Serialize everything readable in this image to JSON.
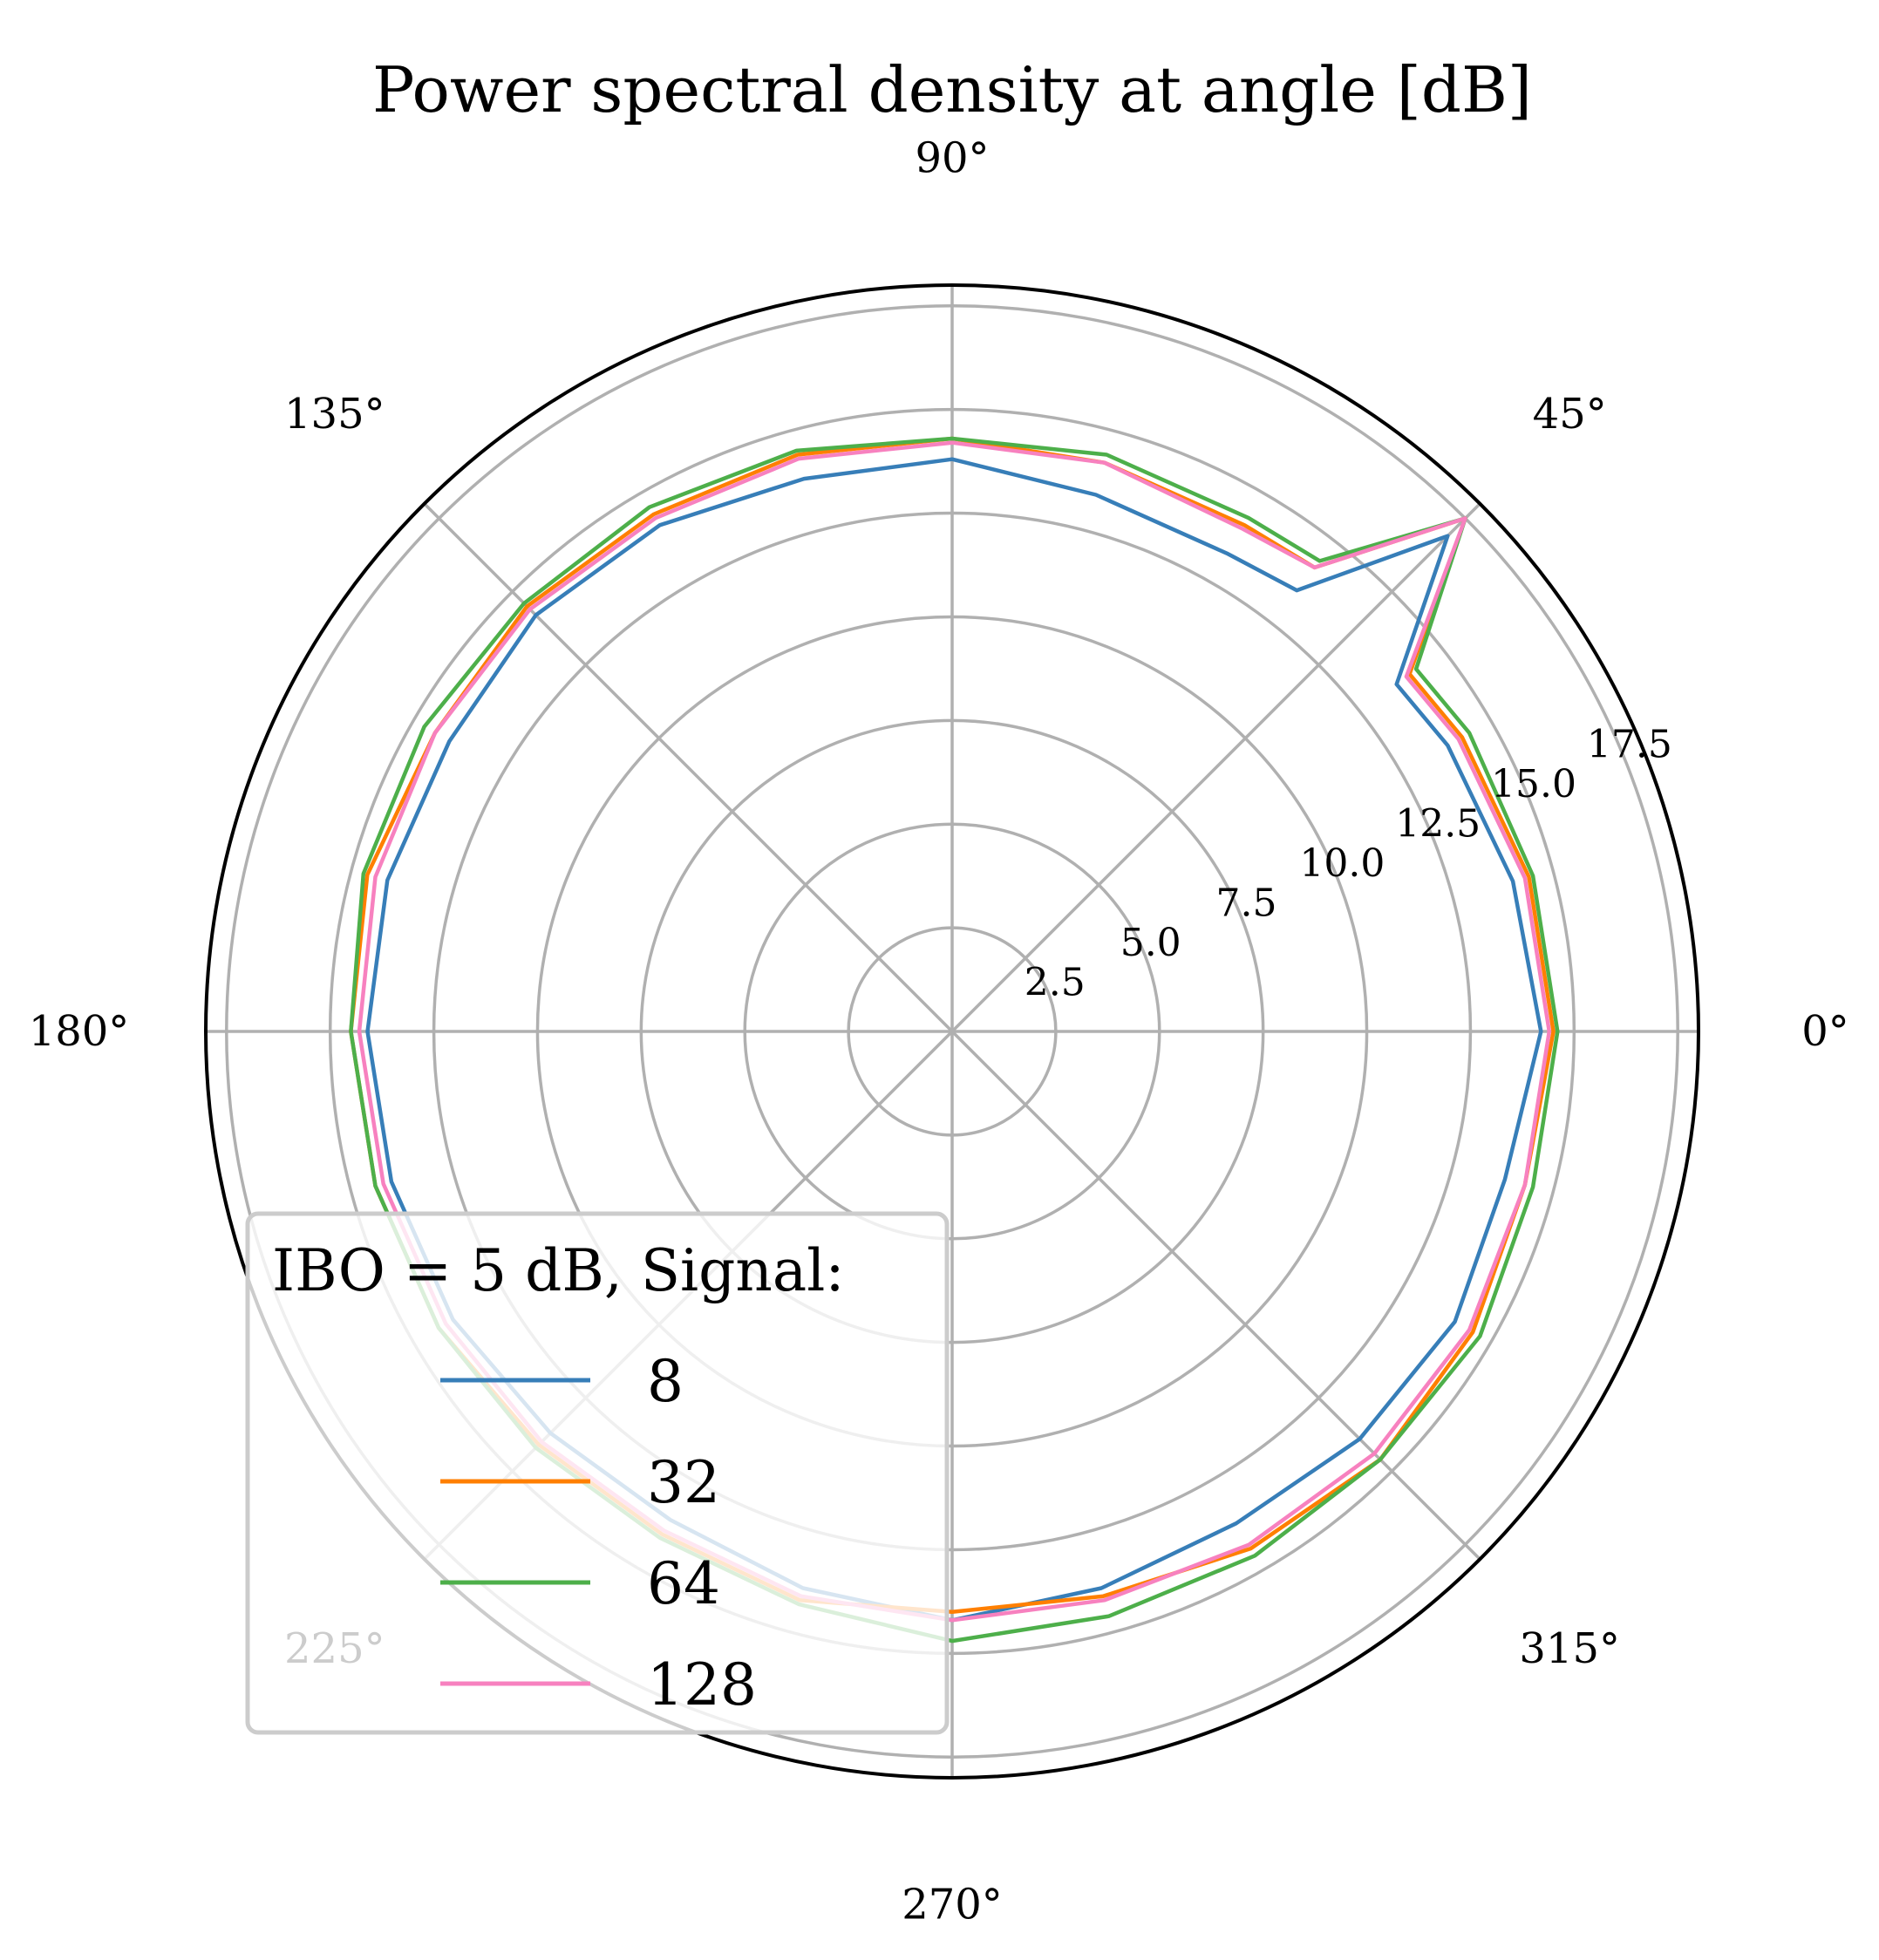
{
  "chart_data": {
    "type": "line",
    "projection": "polar",
    "title": "Power spectral density at angle [dB]",
    "angle_unit": "degrees",
    "theta_ticks": [
      0,
      45,
      90,
      135,
      180,
      225,
      270,
      315
    ],
    "theta_tick_labels": [
      "0°",
      "45°",
      "90°",
      "135°",
      "180°",
      "225°",
      "270°",
      "315°"
    ],
    "r_ticks": [
      2.5,
      5.0,
      7.5,
      10.0,
      12.5,
      15.0,
      17.5
    ],
    "r_tick_labels": [
      "2.5",
      "5.0",
      "7.5",
      "10.0",
      "12.5",
      "15.0",
      "17.5"
    ],
    "rlim": [
      0,
      18
    ],
    "r_label_angle_deg": 22.5,
    "grid": true,
    "legend": {
      "title": "IBO = 5 dB, Signal:",
      "location": "lower left"
    },
    "theta_deg": [
      0,
      15,
      30,
      38,
      45,
      52,
      60,
      75,
      90,
      105,
      120,
      135,
      150,
      165,
      180,
      195,
      210,
      225,
      240,
      255,
      270,
      285,
      300,
      315,
      330,
      345,
      360
    ],
    "series": [
      {
        "name": "8",
        "color": "#377eb8",
        "r": [
          14.2,
          14.0,
          13.8,
          13.6,
          16.9,
          13.5,
          13.3,
          13.4,
          13.8,
          13.8,
          14.1,
          14.2,
          14.0,
          14.1,
          14.1,
          14.0,
          13.9,
          13.7,
          13.6,
          13.9,
          14.2,
          13.9,
          13.7,
          13.9,
          14.0,
          13.8,
          14.2
        ]
      },
      {
        "name": "32",
        "color": "#ff7f00",
        "r": [
          14.5,
          14.4,
          14.2,
          14.0,
          17.5,
          14.2,
          14.1,
          14.2,
          14.3,
          14.4,
          14.4,
          14.5,
          14.4,
          14.6,
          14.5,
          14.4,
          14.3,
          14.1,
          14.0,
          14.2,
          14.0,
          14.1,
          14.4,
          14.6,
          14.5,
          14.3,
          14.5
        ]
      },
      {
        "name": "64",
        "color": "#4daf4a",
        "r": [
          14.6,
          14.5,
          14.4,
          14.2,
          17.5,
          14.4,
          14.3,
          14.4,
          14.3,
          14.5,
          14.6,
          14.6,
          14.7,
          14.7,
          14.5,
          14.4,
          14.3,
          14.2,
          14.1,
          14.3,
          14.7,
          14.6,
          14.6,
          14.6,
          14.7,
          14.5,
          14.6
        ]
      },
      {
        "name": "128",
        "color": "#f781bf",
        "r": [
          14.4,
          14.3,
          14.1,
          13.9,
          17.5,
          14.2,
          14.0,
          14.2,
          14.2,
          14.3,
          14.3,
          14.4,
          14.4,
          14.4,
          14.3,
          14.2,
          14.1,
          14.0,
          13.9,
          14.1,
          14.2,
          14.2,
          14.3,
          14.4,
          14.4,
          14.3,
          14.4
        ]
      }
    ]
  }
}
